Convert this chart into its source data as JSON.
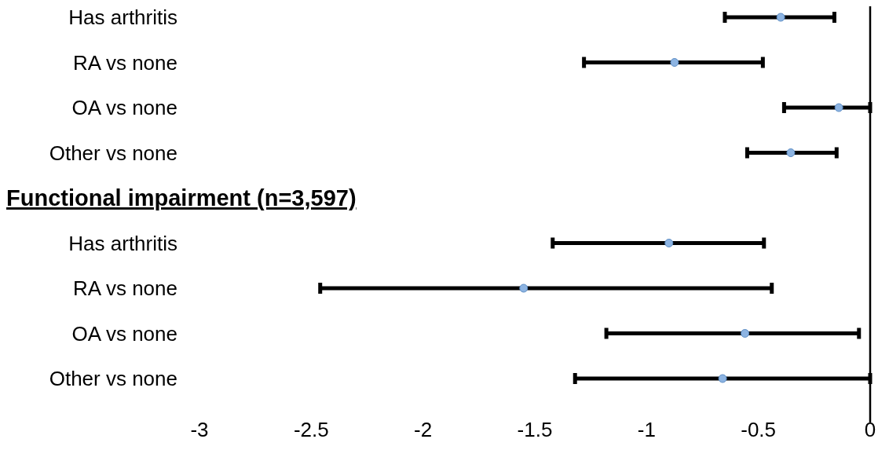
{
  "chart_data": {
    "type": "scatter",
    "orientation": "horizontal",
    "categories": [
      "Has arthritis",
      "RA vs none",
      "OA vs none",
      "Other vs none",
      "Functional impairment (n=3,597)",
      "Has arthritis",
      "RA vs none",
      "OA vs none",
      "Other vs none"
    ],
    "series": [
      {
        "color": "#8db4e2",
        "values": [
          -0.4,
          -0.875,
          -0.14,
          -0.355,
          null,
          -0.9,
          -1.55,
          -0.56,
          -0.66
        ],
        "errors": [
          [
            -0.65,
            -0.16
          ],
          [
            -1.28,
            -0.48
          ],
          [
            -0.385,
            0
          ],
          [
            -0.55,
            -0.15
          ],
          null,
          [
            -1.42,
            -0.475
          ],
          [
            -2.46,
            -0.44
          ],
          [
            -1.18,
            -0.05
          ],
          [
            -1.32,
            0
          ]
        ]
      }
    ],
    "xlim": [
      -3,
      0
    ],
    "xticks": [
      -3,
      -2.5,
      -2,
      -1.5,
      -1,
      -0.5,
      0
    ],
    "marker": "circle"
  }
}
